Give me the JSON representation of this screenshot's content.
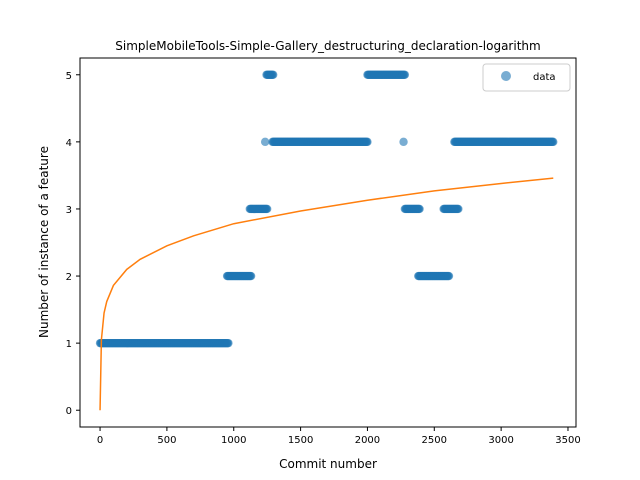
{
  "chart_data": {
    "type": "scatter",
    "title": "SimpleMobileTools-Simple-Gallery_destructuring_declaration-logarithm",
    "xlabel": "Commit number",
    "ylabel": "Number of instance of a feature",
    "xlim": [
      -150,
      3560
    ],
    "ylim": [
      -0.25,
      5.25
    ],
    "xticks": [
      0,
      500,
      1000,
      1500,
      2000,
      2500,
      3000,
      3500
    ],
    "yticks": [
      0,
      1,
      2,
      3,
      4,
      5
    ],
    "grid": false,
    "legend": {
      "placement": "top-right",
      "entries": [
        "data"
      ]
    },
    "colors": {
      "data": "#1f77b4",
      "fit": "#ff7f0e"
    },
    "series": [
      {
        "name": "data",
        "kind": "scatter",
        "segments": [
          {
            "y": 1,
            "x_start": 0,
            "x_end": 960
          },
          {
            "y": 2,
            "x_start": 950,
            "x_end": 1130
          },
          {
            "y": 3,
            "x_start": 1120,
            "x_end": 1250
          },
          {
            "y": 4,
            "x_start": 1235,
            "x_end": 1235
          },
          {
            "y": 5,
            "x_start": 1245,
            "x_end": 1295
          },
          {
            "y": 4,
            "x_start": 1290,
            "x_end": 2000
          },
          {
            "y": 5,
            "x_start": 2000,
            "x_end": 2280
          },
          {
            "y": 4,
            "x_start": 2270,
            "x_end": 2270
          },
          {
            "y": 3,
            "x_start": 2280,
            "x_end": 2390
          },
          {
            "y": 2,
            "x_start": 2380,
            "x_end": 2610
          },
          {
            "y": 3,
            "x_start": 2570,
            "x_end": 2680
          },
          {
            "y": 4,
            "x_start": 2650,
            "x_end": 3390
          }
        ]
      },
      {
        "name": "",
        "kind": "line",
        "fit": "logarithmic",
        "samples": [
          [
            0,
            0
          ],
          [
            10,
            1.05
          ],
          [
            30,
            1.45
          ],
          [
            50,
            1.62
          ],
          [
            100,
            1.86
          ],
          [
            200,
            2.1
          ],
          [
            300,
            2.25
          ],
          [
            500,
            2.45
          ],
          [
            700,
            2.6
          ],
          [
            1000,
            2.78
          ],
          [
            1500,
            2.97
          ],
          [
            2000,
            3.13
          ],
          [
            2500,
            3.27
          ],
          [
            3000,
            3.38
          ],
          [
            3390,
            3.46
          ]
        ]
      }
    ]
  }
}
